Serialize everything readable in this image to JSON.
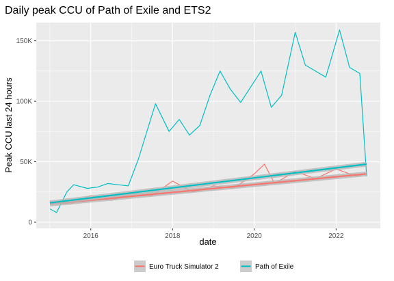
{
  "chart_data": {
    "type": "line",
    "title": "Daily peak CCU of Path of Exile and ETS2",
    "xlabel": "date",
    "ylabel": "Peak CCU last 24 hours",
    "x_range": [
      "2015-01-01",
      "2022-10-01"
    ],
    "ylim": [
      0,
      160000
    ],
    "x_ticks": [
      {
        "value": "2016-01-01",
        "label": "2016"
      },
      {
        "value": "2018-01-01",
        "label": "2018"
      },
      {
        "value": "2020-01-01",
        "label": "2020"
      },
      {
        "value": "2022-01-01",
        "label": "2022"
      }
    ],
    "y_ticks": [
      {
        "value": 0,
        "label": "0"
      },
      {
        "value": 50000,
        "label": "50K"
      },
      {
        "value": 100000,
        "label": "100K"
      },
      {
        "value": 150000,
        "label": "150K"
      }
    ],
    "grid": true,
    "legend_position": "bottom",
    "series": [
      {
        "name": "Euro Truck Simulator 2",
        "color": "#F8766D",
        "x": [
          "2015-01-01",
          "2015-07-01",
          "2016-01-01",
          "2016-07-01",
          "2017-01-01",
          "2017-07-01",
          "2018-01-01",
          "2018-07-01",
          "2019-01-01",
          "2019-07-01",
          "2020-01-01",
          "2020-04-01",
          "2020-07-01",
          "2021-01-01",
          "2021-07-01",
          "2022-01-01",
          "2022-07-01",
          "2022-10-01"
        ],
        "y": [
          17000,
          15000,
          22000,
          18000,
          24000,
          22000,
          34000,
          25000,
          30000,
          28000,
          40000,
          48000,
          32000,
          42000,
          36000,
          44000,
          38000,
          40000
        ],
        "trend": {
          "x": [
            "2015-01-01",
            "2022-10-01"
          ],
          "y": [
            15000,
            40000
          ]
        }
      },
      {
        "name": "Path of Exile",
        "color": "#00BFC4",
        "x": [
          "2015-01-01",
          "2015-03-01",
          "2015-06-01",
          "2015-08-01",
          "2015-12-01",
          "2016-03-01",
          "2016-06-01",
          "2016-09-01",
          "2016-12-01",
          "2017-03-01",
          "2017-08-01",
          "2017-12-01",
          "2018-03-01",
          "2018-06-01",
          "2018-09-01",
          "2018-12-01",
          "2019-03-01",
          "2019-06-01",
          "2019-09-01",
          "2019-12-01",
          "2020-03-01",
          "2020-06-01",
          "2020-09-01",
          "2021-01-01",
          "2021-04-01",
          "2021-07-01",
          "2021-10-01",
          "2022-02-01",
          "2022-05-01",
          "2022-08-01",
          "2022-10-01"
        ],
        "y": [
          11000,
          8000,
          25000,
          31000,
          28000,
          29000,
          32000,
          31000,
          30000,
          52000,
          98000,
          75000,
          85000,
          72000,
          80000,
          105000,
          125000,
          110000,
          99000,
          112000,
          125000,
          95000,
          105000,
          157000,
          130000,
          125000,
          120000,
          159000,
          128000,
          123000,
          38000
        ],
        "trend": {
          "x": [
            "2015-01-01",
            "2022-10-01"
          ],
          "y": [
            16000,
            48000
          ]
        }
      }
    ]
  }
}
